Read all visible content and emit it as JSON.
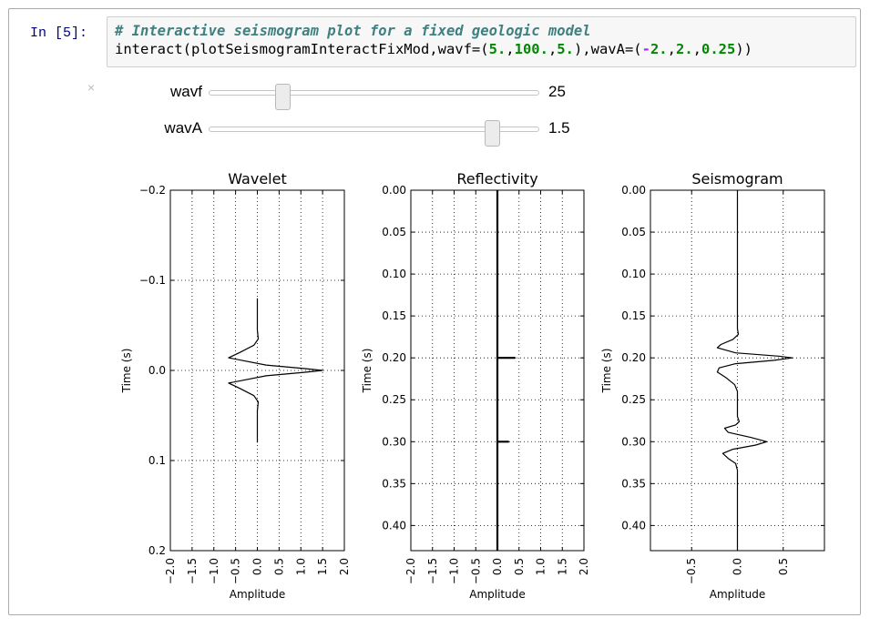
{
  "cell": {
    "prompt": "In [5]:",
    "code_comment": "# Interactive seismogram plot for a fixed geologic model",
    "code_parts": [
      {
        "t": "interact(plotSeismogramInteractFixMod,wavf=(",
        "c": "plain"
      },
      {
        "t": "5.",
        "c": "num"
      },
      {
        "t": ",",
        "c": "plain"
      },
      {
        "t": "100.",
        "c": "num"
      },
      {
        "t": ",",
        "c": "plain"
      },
      {
        "t": "5.",
        "c": "num"
      },
      {
        "t": "),wavA=(",
        "c": "plain"
      },
      {
        "t": "-",
        "c": "op"
      },
      {
        "t": "2.",
        "c": "num"
      },
      {
        "t": ",",
        "c": "plain"
      },
      {
        "t": "2.",
        "c": "num"
      },
      {
        "t": ",",
        "c": "plain"
      },
      {
        "t": "0.25",
        "c": "num"
      },
      {
        "t": "))",
        "c": "plain"
      }
    ],
    "close_icon": "×"
  },
  "widgets": {
    "wavf": {
      "label": "wavf",
      "value": "25",
      "min": 5,
      "max": 100,
      "current": 25
    },
    "wavA": {
      "label": "wavA",
      "value": "1.5",
      "min": -2,
      "max": 2,
      "current": 1.5
    }
  },
  "chart_data": [
    {
      "type": "line",
      "title": "Wavelet",
      "xlabel": "Amplitude",
      "ylabel": "Time (s)",
      "xlim": [
        -2.0,
        2.0
      ],
      "ylim": [
        -0.2,
        0.2
      ],
      "y_inverted": true,
      "xticks": [
        "−2.0",
        "−1.5",
        "−1.0",
        "−0.5",
        "0.0",
        "0.5",
        "1.0",
        "1.5",
        "2.0"
      ],
      "yticks": [
        "−0.2",
        "−0.1",
        "0.0",
        "0.1",
        "0.2"
      ],
      "grid": true,
      "series": [
        {
          "x": [
            0.0,
            0.0,
            0.02,
            -0.08,
            -0.4,
            -0.66,
            0.2,
            1.1,
            1.5,
            1.1,
            0.2,
            -0.66,
            -0.4,
            -0.08,
            0.02,
            0.0,
            0.0
          ],
          "y": [
            -0.08,
            -0.045,
            -0.035,
            -0.028,
            -0.02,
            -0.014,
            -0.006,
            -0.002,
            0.0,
            0.002,
            0.006,
            0.014,
            0.02,
            0.028,
            0.035,
            0.045,
            0.08
          ]
        }
      ]
    },
    {
      "type": "line",
      "title": "Reflectivity",
      "xlabel": "Amplitude",
      "ylabel": "Time (s)",
      "xlim": [
        -2.0,
        2.0
      ],
      "ylim": [
        0.0,
        0.43
      ],
      "y_inverted": true,
      "xticks": [
        "−2.0",
        "−1.5",
        "−1.0",
        "−0.5",
        "0.0",
        "0.5",
        "1.0",
        "1.5",
        "2.0"
      ],
      "yticks": [
        "0.00",
        "0.05",
        "0.10",
        "0.15",
        "0.20",
        "0.25",
        "0.30",
        "0.35",
        "0.40"
      ],
      "grid": true,
      "series": [
        {
          "x": [
            0,
            0,
            0.4,
            0,
            0,
            0.25,
            0,
            0
          ],
          "y": [
            0.0,
            0.2,
            0.2,
            0.2,
            0.3,
            0.3,
            0.3,
            0.43
          ]
        }
      ]
    },
    {
      "type": "line",
      "title": "Seismogram",
      "xlabel": "Amplitude",
      "ylabel": "Time (s)",
      "xlim": [
        -0.95,
        0.95
      ],
      "ylim": [
        0.0,
        0.43
      ],
      "y_inverted": true,
      "xticks": [
        "−0.5",
        "0.0",
        "0.5"
      ],
      "yticks": [
        "0.00",
        "0.05",
        "0.10",
        "0.15",
        "0.20",
        "0.25",
        "0.30",
        "0.35",
        "0.40"
      ],
      "grid": true,
      "series": [
        {
          "x": [
            0,
            0,
            0.01,
            -0.05,
            -0.18,
            -0.22,
            -0.02,
            0.45,
            0.6,
            0.4,
            -0.02,
            -0.2,
            -0.22,
            -0.12,
            -0.03,
            0.0,
            0.0,
            0.02,
            -0.02,
            -0.14,
            -0.1,
            0.15,
            0.32,
            0.2,
            -0.05,
            -0.16,
            -0.1,
            -0.02,
            0.0,
            0.0
          ],
          "y": [
            0.0,
            0.165,
            0.172,
            0.178,
            0.184,
            0.188,
            0.194,
            0.198,
            0.2,
            0.203,
            0.207,
            0.212,
            0.217,
            0.224,
            0.232,
            0.24,
            0.27,
            0.276,
            0.28,
            0.284,
            0.289,
            0.295,
            0.3,
            0.304,
            0.309,
            0.314,
            0.32,
            0.326,
            0.334,
            0.43
          ]
        }
      ]
    }
  ]
}
